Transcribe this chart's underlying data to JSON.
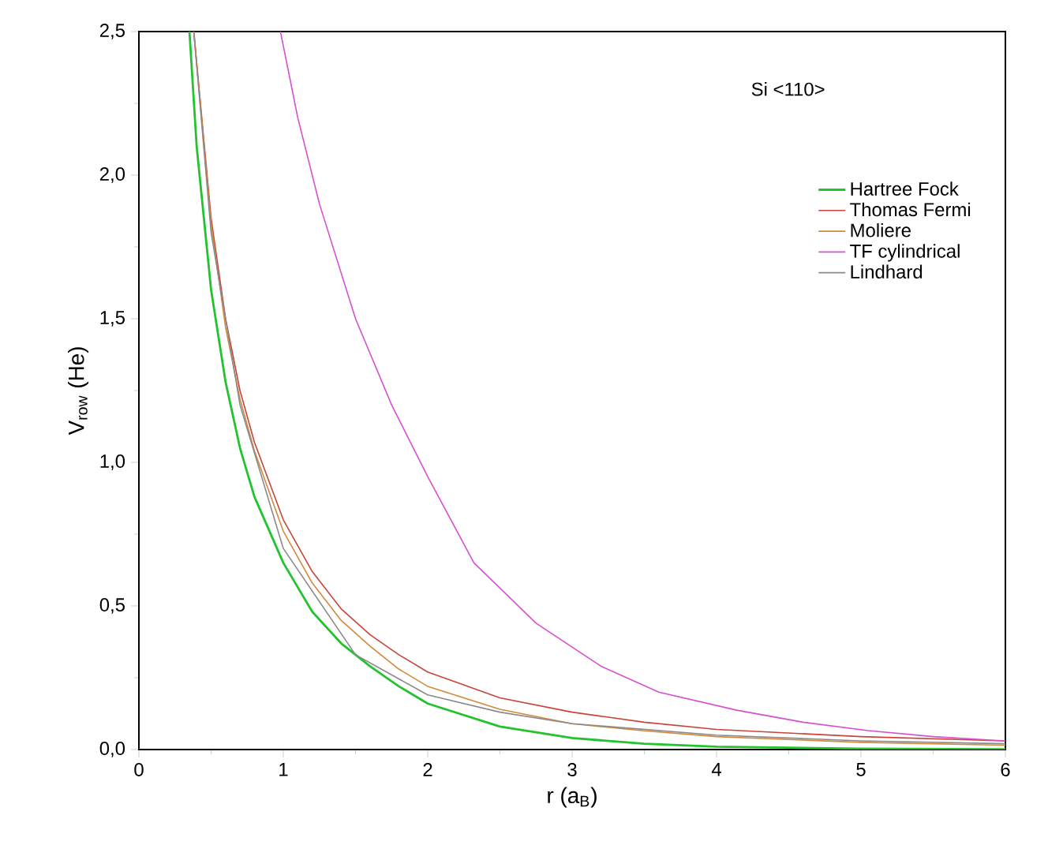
{
  "chart_data": {
    "type": "line",
    "xlabel": "r (a$_{B}$)",
    "ylabel": "V$_{row}$ (He)",
    "annotations": [
      "Si <110>"
    ],
    "xlim": [
      0,
      6
    ],
    "xticks": [
      0,
      1,
      2,
      3,
      4,
      5,
      6
    ],
    "ylim": [
      0,
      2.5
    ],
    "yticks": [
      {
        "value": 0,
        "label": "0,0"
      },
      {
        "value": 0.5,
        "label": "0,5"
      },
      {
        "value": 1,
        "label": "1,0"
      },
      {
        "value": 1.5,
        "label": "1,5"
      },
      {
        "value": 2,
        "label": "2,0"
      },
      {
        "value": 2.5,
        "label": "2,5"
      }
    ],
    "grid": false,
    "legend": "top right",
    "marker": "none",
    "line_style": "solid",
    "series": [
      {
        "name": "Hartree Fock",
        "color": "#22c32e",
        "x": [
          0.35,
          0.4,
          0.5,
          0.6,
          0.7,
          0.8,
          1.0,
          1.2,
          1.4,
          1.6,
          1.8,
          2.0,
          2.5,
          3.0,
          3.5,
          4.0,
          5.0,
          6.0
        ],
        "values": [
          2.5,
          2.1,
          1.6,
          1.28,
          1.05,
          0.88,
          0.65,
          0.48,
          0.37,
          0.29,
          0.22,
          0.16,
          0.08,
          0.04,
          0.02,
          0.01,
          0.003,
          0.001
        ]
      },
      {
        "name": "Thomas Fermi",
        "color": "#c8443a",
        "x": [
          0.38,
          0.5,
          0.6,
          0.7,
          0.8,
          1.0,
          1.2,
          1.4,
          1.6,
          1.8,
          2.0,
          2.5,
          3.0,
          3.5,
          4.0,
          5.0,
          6.0
        ],
        "values": [
          2.5,
          1.85,
          1.5,
          1.25,
          1.07,
          0.8,
          0.62,
          0.49,
          0.4,
          0.33,
          0.27,
          0.18,
          0.13,
          0.095,
          0.07,
          0.045,
          0.03
        ]
      },
      {
        "name": "Moliere",
        "color": "#d4883a",
        "x": [
          0.38,
          0.5,
          0.6,
          0.7,
          0.8,
          1.0,
          1.2,
          1.4,
          1.6,
          1.8,
          2.0,
          2.5,
          3.0,
          3.5,
          4.0,
          5.0,
          6.0
        ],
        "values": [
          2.5,
          1.83,
          1.47,
          1.22,
          1.04,
          0.76,
          0.58,
          0.45,
          0.36,
          0.28,
          0.22,
          0.14,
          0.09,
          0.065,
          0.045,
          0.025,
          0.015
        ]
      },
      {
        "name": "TF cylindrical",
        "color": "#d64fd0",
        "x": [
          0.98,
          1.1,
          1.25,
          1.5,
          1.75,
          2.0,
          2.32,
          2.75,
          3.2,
          3.6,
          4.14,
          4.6,
          5.05,
          5.5,
          6.0
        ],
        "values": [
          2.5,
          2.2,
          1.9,
          1.5,
          1.2,
          0.95,
          0.65,
          0.44,
          0.29,
          0.2,
          0.137,
          0.095,
          0.066,
          0.045,
          0.03
        ]
      },
      {
        "name": "Lindhard",
        "color": "#8a8a8a",
        "x": [
          0.38,
          0.5,
          0.7,
          1.0,
          1.5,
          2.0,
          2.5,
          3.0,
          4.0,
          5.0,
          6.0
        ],
        "values": [
          2.5,
          1.8,
          1.2,
          0.7,
          0.33,
          0.19,
          0.13,
          0.09,
          0.05,
          0.03,
          0.02
        ]
      }
    ]
  }
}
